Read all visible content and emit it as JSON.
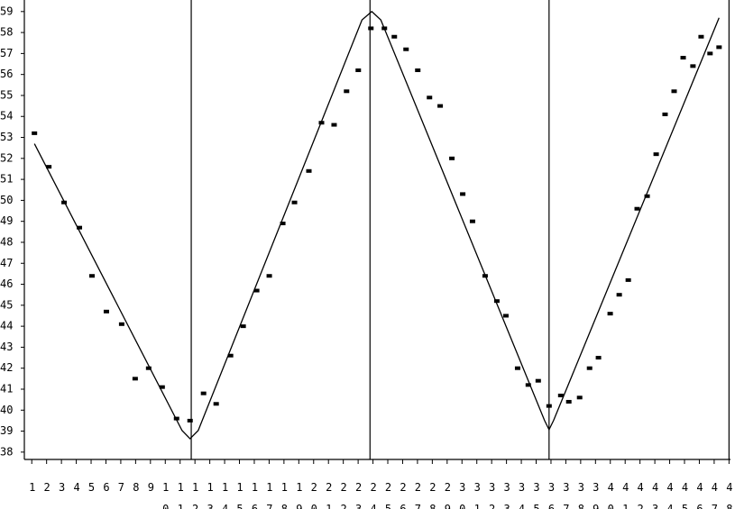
{
  "chart_data": {
    "type": "scatter",
    "xlim": [
      0.5,
      48.1
    ],
    "ylim": [
      37.65,
      59.55
    ],
    "xticks": [
      1,
      2,
      3,
      4,
      5,
      6,
      7,
      8,
      9,
      10,
      11,
      12,
      13,
      14,
      15,
      16,
      17,
      18,
      19,
      20,
      21,
      22,
      23,
      24,
      25,
      26,
      27,
      28,
      29,
      30,
      31,
      32,
      33,
      34,
      35,
      36,
      37,
      38,
      39,
      40,
      41,
      42,
      43,
      44,
      45,
      46,
      47,
      48
    ],
    "yticks": [
      38,
      39,
      40,
      41,
      42,
      43,
      44,
      45,
      46,
      47,
      48,
      49,
      50,
      51,
      52,
      53,
      54,
      55,
      56,
      57,
      58,
      59
    ],
    "vlines": [
      11.75,
      23.8,
      35.87,
      48
    ],
    "color": "#000000",
    "points": {
      "x": [
        1.18,
        2.15,
        3.18,
        4.21,
        5.06,
        6.03,
        7.06,
        7.97,
        8.88,
        9.79,
        10.76,
        11.67,
        12.58,
        13.43,
        14.4,
        15.25,
        16.16,
        17.01,
        17.92,
        18.71,
        19.68,
        20.53,
        21.38,
        22.22,
        23.01,
        23.86,
        24.77,
        25.44,
        26.23,
        27.02,
        27.81,
        28.53,
        29.32,
        30.05,
        30.71,
        31.56,
        32.35,
        32.96,
        33.75,
        34.47,
        35.14,
        35.87,
        36.66,
        37.2,
        37.93,
        38.6,
        39.2,
        39.99,
        40.6,
        41.21,
        41.81,
        42.48,
        43.09,
        43.69,
        44.3,
        44.91,
        45.57,
        46.12,
        46.72,
        47.33
      ],
      "values": [
        53.2,
        51.6,
        49.9,
        48.7,
        46.4,
        44.7,
        44.1,
        41.5,
        42.0,
        41.1,
        39.6,
        39.5,
        40.8,
        40.3,
        42.6,
        44.0,
        45.7,
        46.4,
        48.9,
        49.9,
        51.4,
        53.7,
        53.6,
        55.2,
        56.2,
        58.2,
        58.2,
        57.8,
        57.2,
        56.2,
        54.9,
        54.5,
        52.0,
        50.3,
        49.0,
        46.4,
        45.2,
        44.5,
        42.0,
        41.2,
        41.4,
        40.2,
        40.7,
        40.4,
        40.6,
        42.0,
        42.5,
        44.6,
        45.5,
        46.2,
        49.6,
        50.2,
        52.2,
        54.1,
        55.2,
        56.8,
        56.4,
        57.8,
        57.0,
        57.3
      ]
    },
    "fit": {
      "x": [
        1.18,
        11.13,
        11.67,
        12.22,
        23.26,
        23.92,
        24.53,
        35.57,
        35.87,
        36.17,
        47.33
      ],
      "values": [
        52.7,
        39.03,
        38.64,
        39.03,
        58.6,
        59.0,
        58.6,
        39.5,
        39.07,
        39.5,
        58.7
      ]
    }
  }
}
